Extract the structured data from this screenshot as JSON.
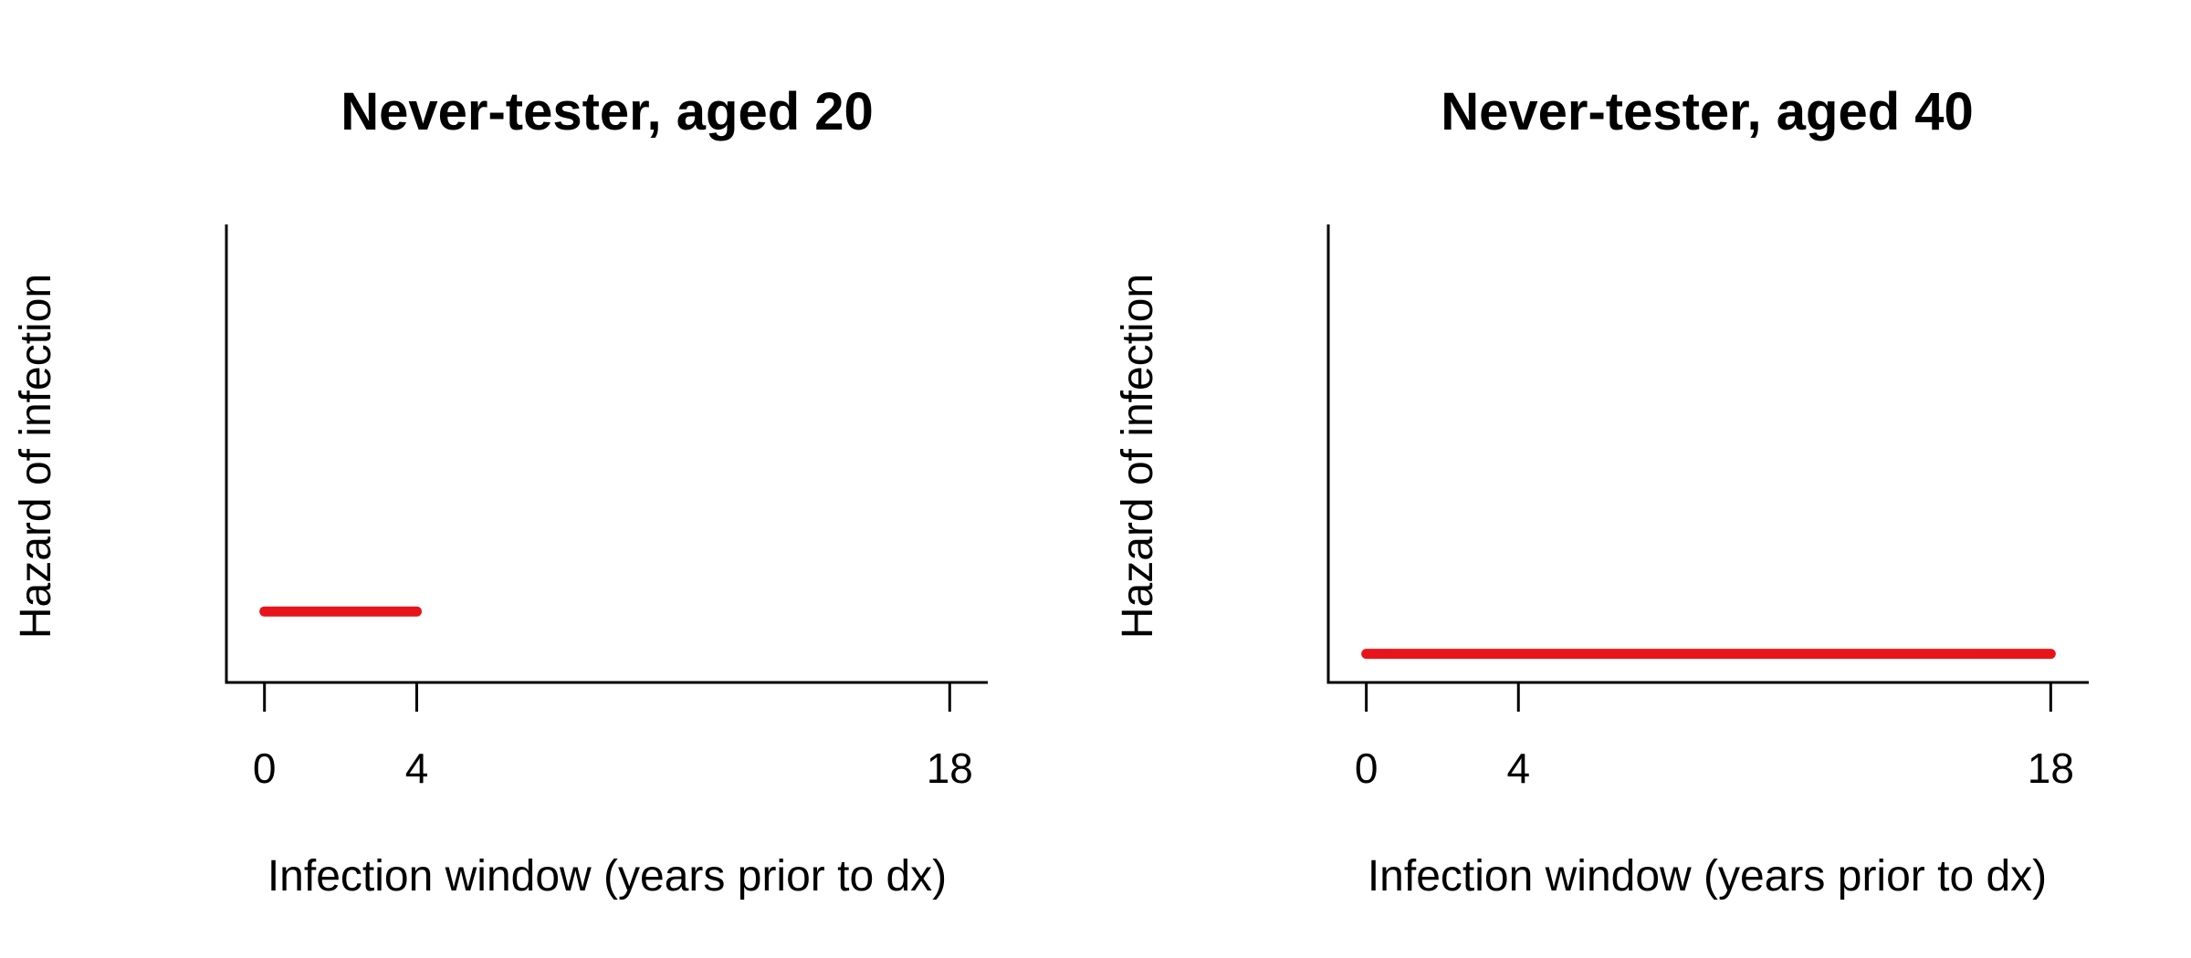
{
  "chart_data": [
    {
      "type": "line",
      "title": "Never-tester, aged 20",
      "xlabel": "Infection window (years prior to dx)",
      "ylabel": "Hazard of infection",
      "xlim": [
        -1,
        19
      ],
      "ylim": [
        0,
        1
      ],
      "xticks": [
        0,
        4,
        18
      ],
      "x_tick_labels": [
        "0",
        "4",
        "18"
      ],
      "y_ticks_shown": false,
      "series_color": "#e8141b",
      "series": [
        {
          "x": [
            0,
            4
          ],
          "y": [
            0.155,
            0.155
          ]
        }
      ]
    },
    {
      "type": "line",
      "title": "Never-tester, aged 40",
      "xlabel": "Infection window (years prior to dx)",
      "ylabel": "Hazard of infection",
      "xlim": [
        -1,
        19
      ],
      "ylim": [
        0,
        1
      ],
      "xticks": [
        0,
        4,
        18
      ],
      "x_tick_labels": [
        "0",
        "4",
        "18"
      ],
      "y_ticks_shown": false,
      "series_color": "#e8141b",
      "series": [
        {
          "x": [
            0,
            18
          ],
          "y": [
            0.0625,
            0.0625
          ]
        }
      ]
    }
  ]
}
